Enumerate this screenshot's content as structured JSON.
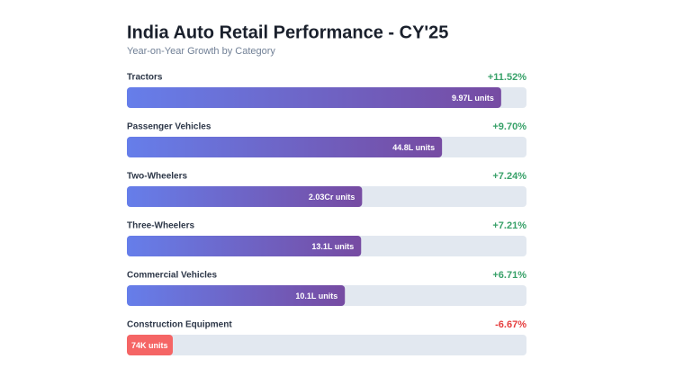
{
  "chart_data": {
    "type": "bar",
    "title": "India Auto Retail Performance - CY'25",
    "subtitle": "Year-on-Year Growth by Category",
    "categories": [
      "Tractors",
      "Passenger Vehicles",
      "Two-Wheelers",
      "Three-Wheelers",
      "Commercial Vehicles",
      "Construction Equipment"
    ],
    "values": [
      11.52,
      9.7,
      7.24,
      7.21,
      6.71,
      -6.67
    ],
    "value_labels": [
      "+11.52%",
      "+9.70%",
      "+7.24%",
      "+7.21%",
      "+6.71%",
      "-6.67%"
    ],
    "unit_labels": [
      "9.97L units",
      "44.8L units",
      "2.03Cr units",
      "13.1L units",
      "10.1L units",
      "74K units"
    ],
    "xlim": [
      0,
      12.3
    ],
    "colors": {
      "positive_start": "#667eea",
      "positive_end": "#764ba2",
      "negative": "#f56565",
      "positive_text": "#38a169",
      "negative_text": "#e53e3e",
      "track": "#e2e8f0"
    }
  }
}
